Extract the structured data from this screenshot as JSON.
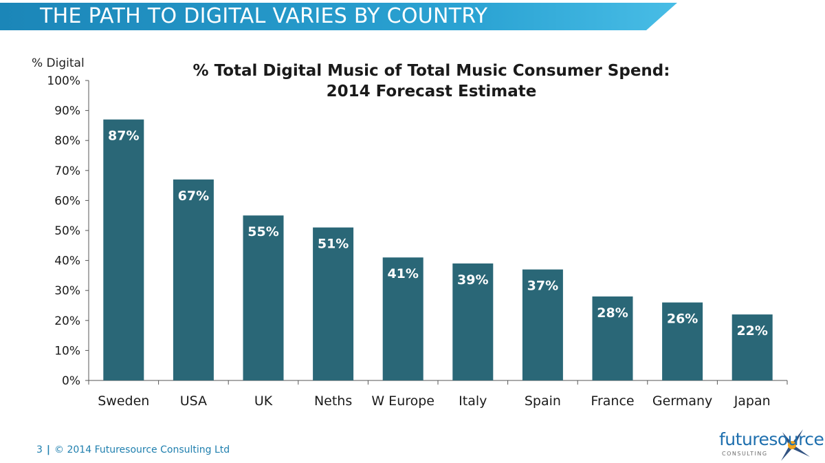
{
  "header": {
    "title": "THE PATH TO DIGITAL VARIES BY COUNTRY"
  },
  "footer": {
    "page_number": "3",
    "separator": "|",
    "copyright": "© 2014 Futuresource Consulting Ltd"
  },
  "logo": {
    "name": "futuresource",
    "sub": "CONSULTING"
  },
  "colors": {
    "bar": "#2a6777",
    "banner": "#1d8fbf",
    "banner_light": "#3bb0dc",
    "label": "#ffffff"
  },
  "chart_data": {
    "type": "bar",
    "title": [
      "% Total Digital Music of Total Music Consumer Spend:",
      "2014 Forecast Estimate"
    ],
    "ylabel": "% Digital",
    "xlabel": "",
    "categories": [
      "Sweden",
      "USA",
      "UK",
      "Neths",
      "W Europe",
      "Italy",
      "Spain",
      "France",
      "Germany",
      "Japan"
    ],
    "values": [
      87,
      67,
      55,
      51,
      41,
      39,
      37,
      28,
      26,
      22
    ],
    "data_labels": [
      "87%",
      "67%",
      "55%",
      "51%",
      "41%",
      "39%",
      "37%",
      "28%",
      "26%",
      "22%"
    ],
    "ylim": [
      0,
      100
    ],
    "yticks": [
      "0%",
      "10%",
      "20%",
      "30%",
      "40%",
      "50%",
      "60%",
      "70%",
      "80%",
      "90%",
      "100%"
    ],
    "grid": false,
    "legend": "none"
  }
}
